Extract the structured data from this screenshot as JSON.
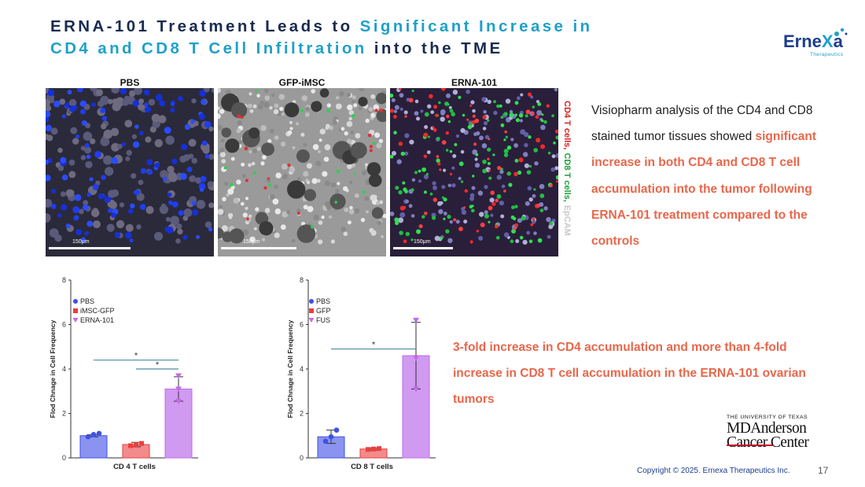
{
  "slide": {
    "title_part1": "ERNA-101 Treatment Leads to ",
    "title_part2": "Significant Increase in",
    "title_part3": "CD4 and CD8 T Cell Infiltration",
    "title_part4": " into the TME",
    "logo_word_a": "Erne",
    "logo_word_b": "X",
    "logo_word_c": "a",
    "logo_sub": "Therapeutics",
    "panels": [
      {
        "label": "PBS",
        "scale": "150μm"
      },
      {
        "label": "GFP-iMSC",
        "scale": "150μm"
      },
      {
        "label": "ERNA-101",
        "scale": "150μm"
      }
    ],
    "stain_labels": [
      {
        "text": "CD4 T cells,",
        "color": "#d81e1e"
      },
      {
        "text": "CD8 T cells,",
        "color": "#1e9e3c"
      },
      {
        "text": "EpCAM",
        "color": "#c8c8c8"
      }
    ],
    "desc_plain": "Visiopharm analysis of the CD4 and CD8 stained tumor tissues showed",
    "desc_bold": "significant increase in both CD4 and CD8 T cell accumulation into the tumor following  ERNA-101 treatment compared to the controls",
    "callout": "3-fold increase in CD4 accumulation and more than 4-fold increase in CD8 T cell accumulation in the ERNA-101 ovarian tumors",
    "univ_line": "THE UNIVERSITY OF TEXAS",
    "md_line1": "MDAnderson",
    "md_line2": "Cancer Center",
    "copyright": "Copyright © 2025. Ernexa Therapeutics Inc.",
    "page_number": "17"
  },
  "chart_data": [
    {
      "type": "bar",
      "title": "",
      "xlabel": "CD 4 T cells",
      "ylabel": "Flod Chnage in  Cell Frequency",
      "ylim": [
        0,
        8
      ],
      "yticks": [
        0,
        2,
        4,
        6,
        8
      ],
      "grid": false,
      "legend_position": "top-left",
      "categories": [
        "PBS",
        "iMSC-GFP",
        "ERNA-101"
      ],
      "values": [
        1.0,
        0.6,
        3.1
      ],
      "errors": [
        0.05,
        0.1,
        0.55
      ],
      "points": [
        [
          0.95,
          1.05,
          1.1
        ],
        [
          0.55,
          0.6,
          0.65
        ],
        [
          2.55,
          3.1,
          3.7
        ]
      ],
      "colors": [
        "#3f51e6",
        "#ee3d3d",
        "#c36be8"
      ],
      "fills": [
        "#8a94f0",
        "#f28b8b",
        "#d09af0"
      ],
      "markers": [
        "circle",
        "square",
        "triangle-down"
      ],
      "significance": [
        {
          "from": 0,
          "to": 2,
          "y": 4.4,
          "label": "*"
        },
        {
          "from": 1,
          "to": 2,
          "y": 4.0,
          "label": "*"
        }
      ]
    },
    {
      "type": "bar",
      "title": "",
      "xlabel": "CD 8 T cells",
      "ylabel": "Flod Chnage in  Cell Frequency",
      "ylim": [
        0,
        8
      ],
      "yticks": [
        0,
        2,
        4,
        6,
        8
      ],
      "grid": false,
      "legend_position": "top-left",
      "categories": [
        "PBS",
        "GFP",
        "FUS"
      ],
      "values": [
        0.95,
        0.4,
        4.6
      ],
      "errors": [
        0.3,
        0.05,
        1.5
      ],
      "points": [
        [
          0.75,
          0.95,
          1.25
        ],
        [
          0.38,
          0.4,
          0.42
        ],
        [
          3.1,
          4.5,
          6.2
        ]
      ],
      "colors": [
        "#3f51e6",
        "#ee3d3d",
        "#c36be8"
      ],
      "fills": [
        "#8a94f0",
        "#f28b8b",
        "#d09af0"
      ],
      "markers": [
        "circle",
        "square",
        "triangle-down"
      ],
      "significance": [
        {
          "from": 0,
          "to": 2,
          "y": 4.9,
          "label": "*"
        }
      ]
    }
  ]
}
